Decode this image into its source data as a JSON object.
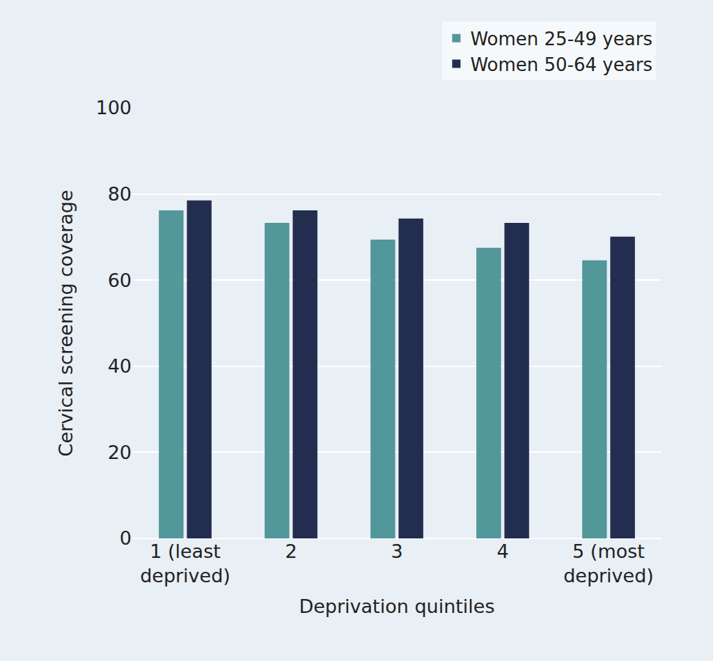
{
  "chart_data": {
    "type": "bar",
    "x_label": "Deprivation quintiles",
    "y_label": "Cervical screening coverage",
    "categories": [
      "1 (least\ndeprived)",
      "2",
      "3",
      "4",
      "5 (most\ndeprived)"
    ],
    "series": [
      {
        "name": "Women 25-49 years",
        "color": "#52979a",
        "values": [
          76.2,
          73.3,
          69.4,
          67.5,
          64.6
        ]
      },
      {
        "name": "Women 50-64 years",
        "color": "#222d4f",
        "values": [
          78.5,
          76.2,
          74.3,
          73.3,
          70.1
        ]
      }
    ],
    "ylim": [
      0,
      100
    ],
    "yticks": [
      0,
      20,
      40,
      60,
      80,
      100
    ],
    "grid": true,
    "legend": "upper right"
  }
}
